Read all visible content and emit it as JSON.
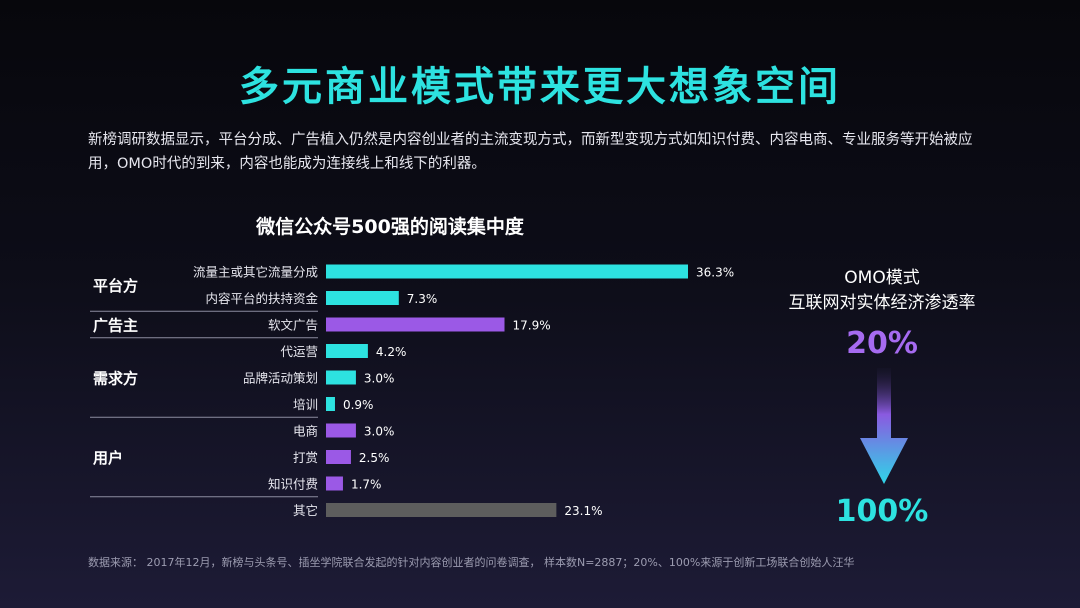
{
  "title": "多元商业模式带来更大想象空间",
  "intro": "新榜调研数据显示，平台分成、广告植入仍然是内容创业者的主流变现方式，而新型变现方式如知识付费、内容电商、专业服务等开始被应用，OMO时代的到来，内容也能成为连接线上和线下的利器。",
  "chart_data": {
    "type": "bar",
    "orientation": "horizontal",
    "title": "微信公众号500强的阅读集中度",
    "categories": [
      "流量主或其它流量分成",
      "内容平台的扶持资金",
      "软文广告",
      "代运营",
      "品牌活动策划",
      "培训",
      "电商",
      "打赏",
      "知识付费",
      "其它"
    ],
    "values": [
      36.3,
      7.3,
      17.9,
      4.2,
      3.0,
      0.9,
      3.0,
      2.5,
      1.7,
      23.1
    ],
    "value_labels": [
      "36.3%",
      "7.3%",
      "17.9%",
      "4.2%",
      "3.0%",
      "0.9%",
      "3.0%",
      "2.5%",
      "1.7%",
      "23.1%"
    ],
    "groups": [
      {
        "name": "平台方",
        "members": [
          "流量主或其它流量分成",
          "内容平台的扶持资金"
        ]
      },
      {
        "name": "广告主",
        "members": [
          "软文广告"
        ]
      },
      {
        "name": "需求方",
        "members": [
          "代运营",
          "品牌活动策划",
          "培训"
        ]
      },
      {
        "name": "用户",
        "members": [
          "电商",
          "打赏",
          "知识付费"
        ]
      },
      {
        "name": "",
        "members": [
          "其它"
        ]
      }
    ],
    "colors": [
      "#2de2e0",
      "#2de2e0",
      "#9b59e6",
      "#2de2e0",
      "#2de2e0",
      "#2de2e0",
      "#9b59e6",
      "#9b59e6",
      "#9b59e6",
      "#5d5d5d"
    ],
    "xlim": [
      0,
      40
    ],
    "grid": false,
    "legend": "none"
  },
  "side": {
    "title_line1": "OMO模式",
    "title_line2": "互联网对实体经济渗透率",
    "from_value": "20%",
    "to_value": "100%",
    "from_color": "#a66bf0",
    "to_color": "#2de2e0"
  },
  "source": "数据来源： 2017年12月，新榜与头条号、插坐学院联合发起的针对内容创业者的问卷调查， 样本数N=2887；20%、100%来源于创新工场联合创始人汪华"
}
